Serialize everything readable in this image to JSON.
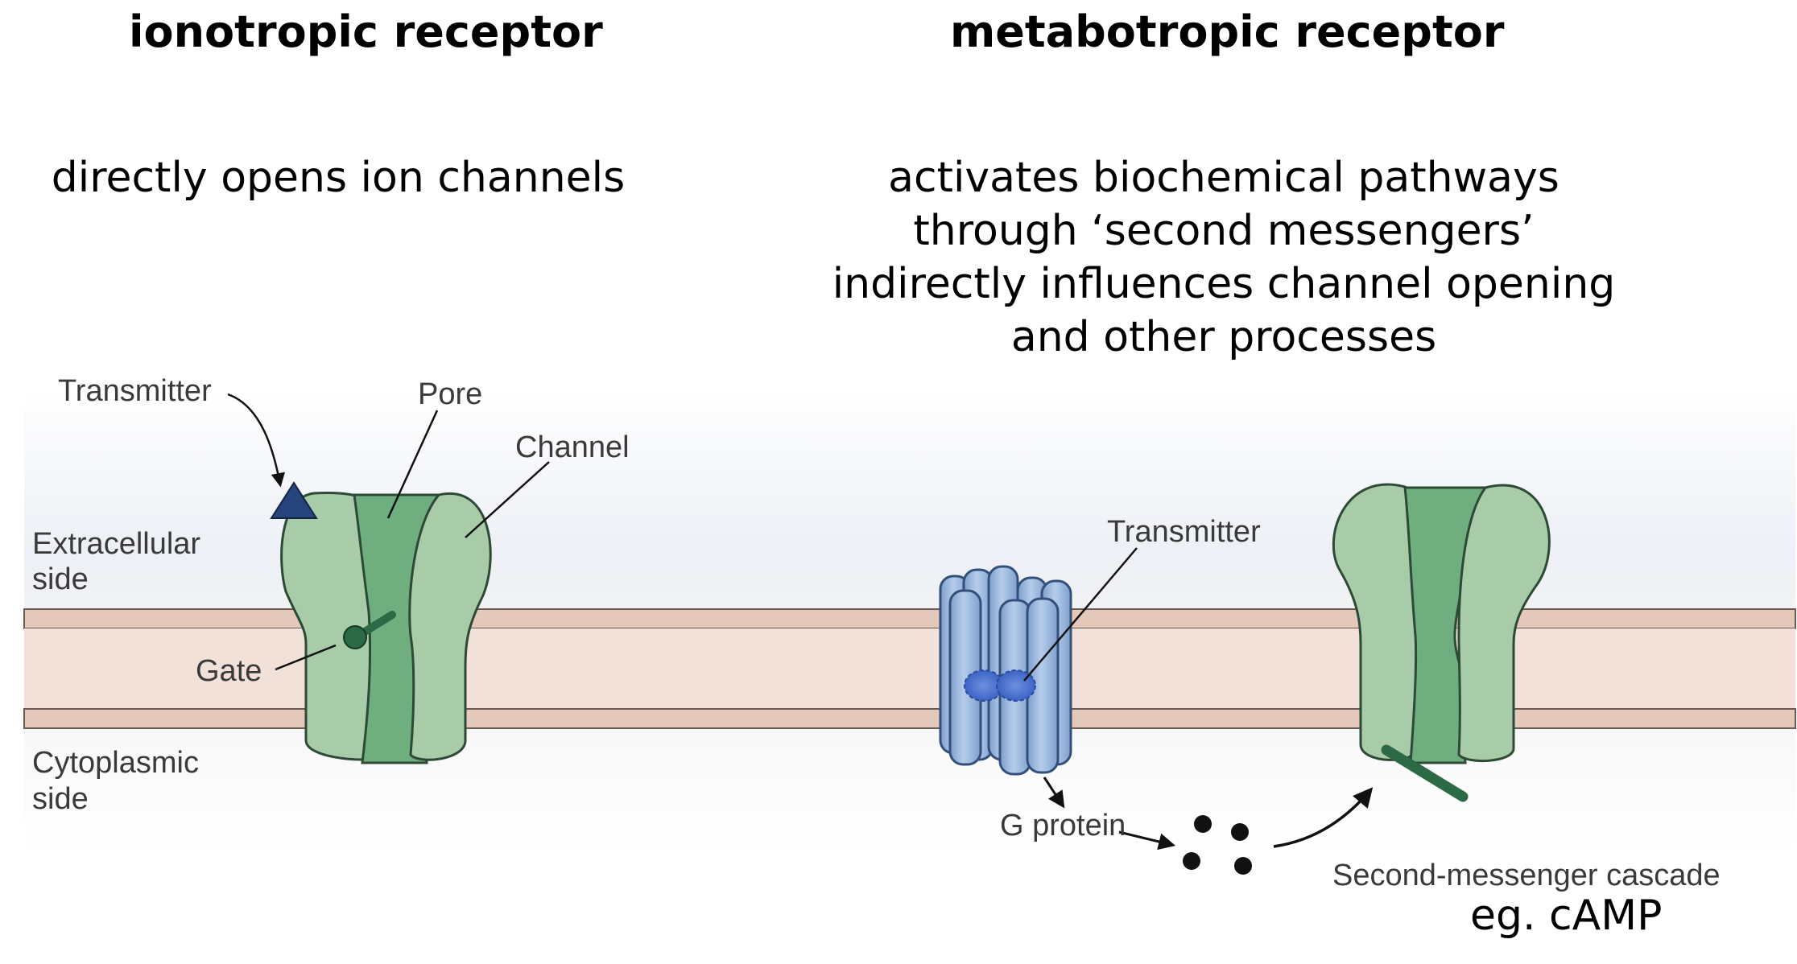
{
  "headings": {
    "left": "ionotropic receptor",
    "right": "metabotropic receptor"
  },
  "descriptions": {
    "left": "directly opens ion channels",
    "right": [
      "activates biochemical pathways",
      "through ‘second messengers’",
      "indirectly influences channel opening",
      "and other processes"
    ]
  },
  "figure_labels": {
    "transmitter_left": "Transmitter",
    "pore": "Pore",
    "channel": "Channel",
    "extracellular": [
      "Extracellular",
      "side"
    ],
    "gate": "Gate",
    "cytoplasmic": [
      "Cytoplasmic",
      "side"
    ],
    "transmitter_right": "Transmitter",
    "g_protein": "G protein",
    "cascade": "Second-messenger cascade"
  },
  "example": "eg. cAMP",
  "colors": {
    "channel_fill": "#a9cca8",
    "channel_dark": "#6fae7f",
    "gate": "#2b6a45",
    "receptor_blue": "#9fbbdf",
    "transmitter_triangle": "#27457d",
    "membrane": "#e4c9bb"
  }
}
